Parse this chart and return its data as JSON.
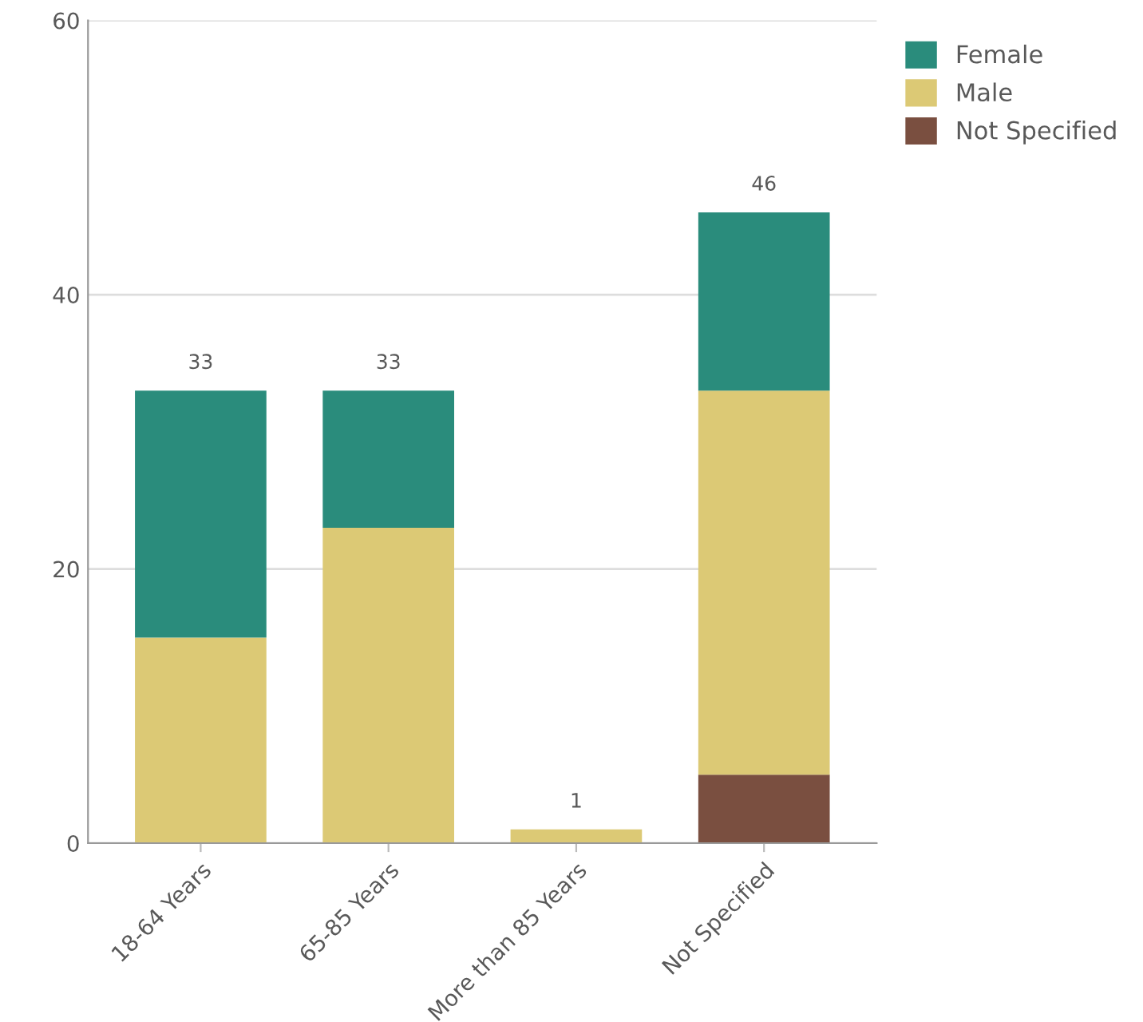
{
  "chart_data": {
    "type": "bar",
    "stacked": true,
    "categories": [
      "18-64 Years",
      "65-85 Years",
      "More than 85 Years",
      "Not Specified"
    ],
    "series": [
      {
        "name": "Not Specified",
        "color": "#7a4f40",
        "values": [
          0,
          0,
          0,
          5
        ]
      },
      {
        "name": "Male",
        "color": "#dcc975",
        "values": [
          15,
          23,
          1,
          28
        ]
      },
      {
        "name": "Female",
        "color": "#2a8c7c",
        "values": [
          18,
          10,
          0,
          13
        ]
      }
    ],
    "totals": [
      "33",
      "33",
      "1",
      "46"
    ],
    "ylim": [
      0,
      60
    ],
    "yticks": [
      0,
      20,
      40,
      60
    ],
    "grid": "y",
    "legend": "top right"
  }
}
